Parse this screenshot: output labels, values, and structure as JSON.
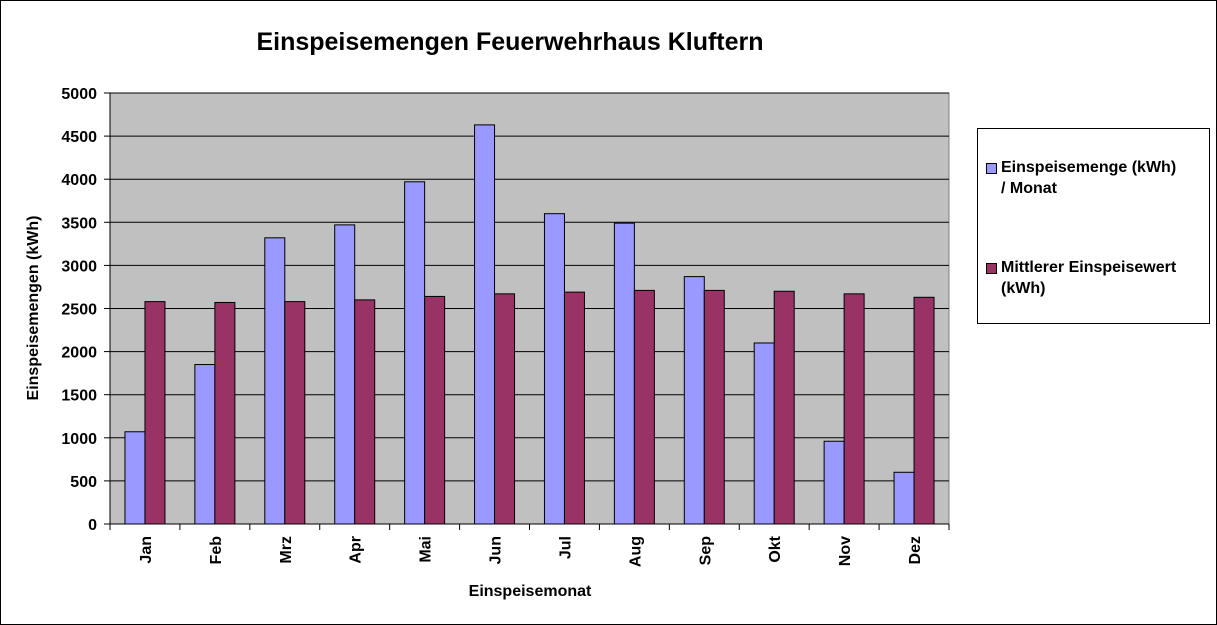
{
  "chart_data": {
    "type": "bar",
    "title": "Einspeisemengen Feuerwehrhaus Kluftern",
    "xlabel": "Einspeisemonat",
    "ylabel": "Einspeisemengen (kWh)",
    "ylim": [
      0,
      5000
    ],
    "yticks": [
      "0",
      "500",
      "1000",
      "1500",
      "2000",
      "2500",
      "3000",
      "3500",
      "4000",
      "4500",
      "5000"
    ],
    "categories": [
      "Jan",
      "Feb",
      "Mrz",
      "Apr",
      "Mai",
      "Jun",
      "Jul",
      "Aug",
      "Sep",
      "Okt",
      "Nov",
      "Dez"
    ],
    "series": [
      {
        "name": "Einspeisemenge (kWh)\n/ Monat",
        "color": "#9999ff",
        "values": [
          1070,
          1850,
          3320,
          3470,
          3970,
          4630,
          3600,
          3490,
          2870,
          2100,
          960,
          600
        ]
      },
      {
        "name": "Mittlerer Einspeisewert\n(kWh)",
        "color": "#993366",
        "values": [
          2580,
          2570,
          2580,
          2600,
          2640,
          2670,
          2690,
          2710,
          2710,
          2700,
          2670,
          2630
        ]
      }
    ],
    "grid": true,
    "plot_background": "#c0c0c0",
    "legend_position": "right"
  }
}
